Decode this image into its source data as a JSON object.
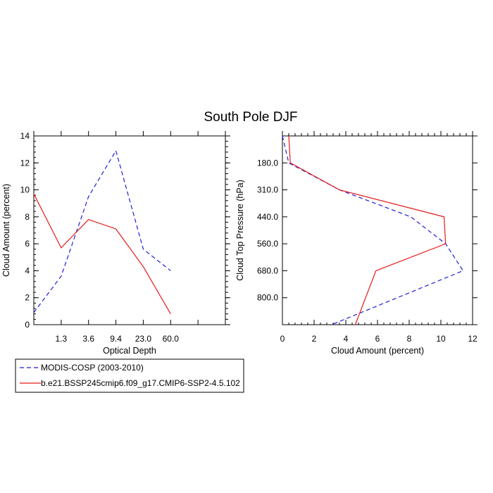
{
  "title": "South Pole DJF",
  "legend": {
    "placement": "bottom-left",
    "entries": [
      {
        "label": "MODIS-COSP (2003-2010)",
        "color": "#1f1fd6",
        "dash": "dashed"
      },
      {
        "label": "b.e21.BSSP245cmip6.f09_g17.CMIP6-SSP2-4.5.102",
        "color": "#e61919",
        "dash": "solid"
      }
    ]
  },
  "chart_data": [
    {
      "type": "line",
      "name": "left-panel",
      "xlabel": "Optical Depth",
      "ylabel": "Cloud Amount (percent)",
      "ylim": [
        0,
        14
      ],
      "y_ticks": [
        0,
        2,
        4,
        6,
        8,
        10,
        12,
        14
      ],
      "x_tick_labels": [
        "1.3",
        "3.6",
        "9.4",
        "23.0",
        "60.0"
      ],
      "x_bins": 7,
      "series": [
        {
          "name": "MODIS-COSP (2003-2010)",
          "color": "#1f1fd6",
          "dash": "dashed",
          "values": [
            0.9,
            3.6,
            9.5,
            12.9,
            5.6,
            4.0
          ]
        },
        {
          "name": "b.e21.BSSP245cmip6.f09_g17.CMIP6-SSP2-4.5.102",
          "color": "#e61919",
          "dash": "solid",
          "values": [
            9.7,
            5.7,
            7.8,
            7.1,
            4.3,
            0.8
          ]
        }
      ],
      "grid": false
    },
    {
      "type": "line",
      "name": "right-panel",
      "xlabel": "Cloud Amount (percent)",
      "ylabel": "Cloud Top Pressure (hPa)",
      "xlim": [
        0,
        12
      ],
      "x_ticks": [
        0,
        2,
        4,
        6,
        8,
        10,
        12
      ],
      "y_tick_labels": [
        "180.0",
        "310.0",
        "440.0",
        "560.0",
        "680.0",
        "800.0"
      ],
      "y_bins": 7,
      "series": [
        {
          "name": "MODIS-COSP (2003-2010)",
          "color": "#1f1fd6",
          "dash": "dashed",
          "values": [
            0.0,
            0.4,
            3.6,
            8.1,
            10.3,
            11.4,
            3.1
          ]
        },
        {
          "name": "b.e21.BSSP245cmip6.f09_g17.CMIP6-SSP2-4.5.102",
          "color": "#e61919",
          "dash": "solid",
          "values": [
            0.4,
            0.5,
            3.6,
            10.2,
            10.3,
            5.9,
            4.6
          ]
        }
      ],
      "grid": false
    }
  ]
}
